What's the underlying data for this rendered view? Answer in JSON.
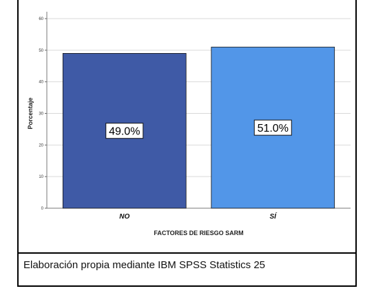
{
  "chart_data": {
    "type": "bar",
    "categories": [
      "NO",
      "SÍ"
    ],
    "values": [
      49.0,
      51.0
    ],
    "value_labels": [
      "49.0%",
      "51.0%"
    ],
    "colors": [
      "#3f5aa6",
      "#5296e8"
    ],
    "xlabel": "FACTORES DE RIESGO SARM",
    "ylabel": "Porcentaje",
    "ylim": [
      0,
      60
    ],
    "yticks": [
      "0",
      "10",
      "20",
      "30",
      "40",
      "50",
      "60"
    ],
    "grid": true
  },
  "caption": "Elaboración propia mediante IBM SPSS Statistics 25"
}
